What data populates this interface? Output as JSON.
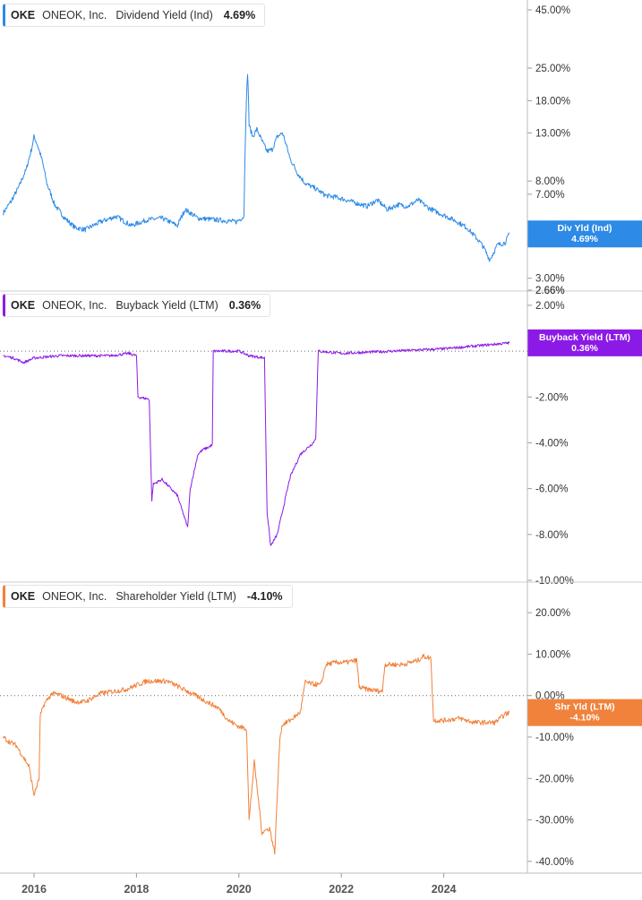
{
  "colors": {
    "dividend": "#2d8ae6",
    "buyback": "#8c1ae6",
    "shareholder": "#f0823c",
    "axis_text": "#333333",
    "divider": "#cccccc"
  },
  "chart_data": [
    {
      "type": "line",
      "ticker": "OKE",
      "company": "ONEOK, Inc.",
      "title": "Dividend Yield (Ind)",
      "value": "4.69%",
      "tag": [
        "Div Yld (Ind)",
        "4.69%"
      ],
      "scale": "log",
      "ylim": [
        2.66,
        45
      ],
      "yticks": [
        "45.00%",
        "25.00%",
        "18.00%",
        "13.00%",
        "8.00%",
        "7.00%",
        "3.00%",
        "2.66%"
      ],
      "ytick_values": [
        45,
        25,
        18,
        13,
        8,
        7,
        3,
        2.66
      ],
      "series": [
        {
          "x": [
            2015.4,
            2015.55,
            2015.7,
            2015.85,
            2015.95,
            2016.0,
            2016.05,
            2016.15,
            2016.25,
            2016.4,
            2016.6,
            2016.8,
            2017.0,
            2017.3,
            2017.6,
            2017.9,
            2018.2,
            2018.5,
            2018.8,
            2018.95,
            2019.2,
            2019.6,
            2019.95,
            2020.1,
            2020.17,
            2020.2,
            2020.27,
            2020.35,
            2020.45,
            2020.55,
            2020.65,
            2020.75,
            2020.85,
            2020.95,
            2021.0,
            2021.15,
            2021.3,
            2021.5,
            2021.7,
            2021.9,
            2022.1,
            2022.3,
            2022.5,
            2022.7,
            2022.9,
            2023.1,
            2023.3,
            2023.5,
            2023.7,
            2023.9,
            2024.2,
            2024.45,
            2024.6,
            2024.75,
            2024.9,
            2025.05,
            2025.2,
            2025.28
          ],
          "y": [
            5.8,
            6.5,
            7.5,
            9.0,
            11.0,
            12.5,
            11.8,
            10.0,
            7.8,
            6.3,
            5.5,
            5.0,
            4.9,
            5.3,
            5.6,
            5.1,
            5.4,
            5.5,
            5.1,
            6.0,
            5.5,
            5.4,
            5.3,
            5.6,
            24.0,
            14.0,
            12.5,
            13.5,
            12.0,
            10.8,
            11.0,
            12.5,
            13.0,
            11.0,
            10.0,
            8.6,
            7.8,
            7.4,
            6.9,
            6.8,
            6.6,
            6.4,
            6.2,
            6.6,
            6.0,
            6.3,
            6.2,
            6.6,
            6.1,
            5.8,
            5.4,
            5.0,
            4.6,
            4.2,
            3.6,
            4.2,
            4.3,
            4.69
          ]
        }
      ]
    },
    {
      "type": "line",
      "ticker": "OKE",
      "company": "ONEOK, Inc.",
      "title": "Buyback Yield (LTM)",
      "value": "0.36%",
      "tag": [
        "Buyback Yield (LTM)",
        "0.36%"
      ],
      "scale": "linear",
      "ylim": [
        -10,
        2.66
      ],
      "yticks": [
        "2.66%",
        "2.00%",
        "-2.00%",
        "-4.00%",
        "-6.00%",
        "-8.00%",
        "-10.00%"
      ],
      "ytick_values": [
        2.66,
        2.0,
        -2.0,
        -4.0,
        -6.0,
        -8.0,
        -10.0
      ],
      "series": [
        {
          "x": [
            2015.4,
            2015.6,
            2015.8,
            2016.0,
            2016.5,
            2017.0,
            2017.5,
            2017.85,
            2018.0,
            2018.03,
            2018.25,
            2018.3,
            2018.33,
            2018.5,
            2018.8,
            2019.0,
            2019.05,
            2019.2,
            2019.3,
            2019.4,
            2019.48,
            2019.5,
            2020.0,
            2020.2,
            2020.5,
            2020.55,
            2020.62,
            2020.75,
            2021.0,
            2021.2,
            2021.45,
            2021.5,
            2021.55,
            2022.0,
            2022.5,
            2023.0,
            2023.5,
            2024.0,
            2024.5,
            2025.0,
            2025.28
          ],
          "y": [
            -0.2,
            -0.3,
            -0.5,
            -0.3,
            -0.2,
            -0.2,
            -0.2,
            -0.1,
            -0.2,
            -2.0,
            -2.1,
            -6.5,
            -5.8,
            -5.6,
            -6.3,
            -7.7,
            -6.0,
            -4.5,
            -4.3,
            -4.2,
            -4.1,
            0.0,
            0.0,
            -0.2,
            -0.3,
            -7.0,
            -8.5,
            -8.0,
            -5.5,
            -4.5,
            -4.0,
            -3.8,
            0.0,
            -0.1,
            -0.05,
            0.0,
            0.05,
            0.1,
            0.2,
            0.3,
            0.36
          ]
        }
      ]
    },
    {
      "type": "line",
      "ticker": "OKE",
      "company": "ONEOK, Inc.",
      "title": "Shareholder Yield (LTM)",
      "value": "-4.10%",
      "tag": [
        "Shr Yld (LTM)",
        "-4.10%"
      ],
      "scale": "linear",
      "ylim": [
        -45,
        25
      ],
      "yticks": [
        "20.00%",
        "10.00%",
        "0.00%",
        "-10.00%",
        "-20.00%",
        "-30.00%",
        "-40.00%"
      ],
      "ytick_values": [
        20,
        10,
        0,
        -10,
        -20,
        -30,
        -40
      ],
      "series": [
        {
          "x": [
            2015.4,
            2015.5,
            2015.65,
            2015.8,
            2015.9,
            2016.0,
            2016.1,
            2016.12,
            2016.2,
            2016.35,
            2016.5,
            2016.8,
            2017.0,
            2017.3,
            2017.8,
            2018.2,
            2018.6,
            2019.0,
            2019.3,
            2019.6,
            2019.8,
            2020.0,
            2020.15,
            2020.2,
            2020.3,
            2020.45,
            2020.6,
            2020.7,
            2020.8,
            2020.85,
            2021.0,
            2021.2,
            2021.3,
            2021.35,
            2021.6,
            2021.7,
            2021.9,
            2022.1,
            2022.3,
            2022.35,
            2022.5,
            2022.8,
            2022.85,
            2023.2,
            2023.5,
            2023.6,
            2023.75,
            2023.8,
            2024.0,
            2024.3,
            2024.6,
            2024.8,
            2025.0,
            2025.2,
            2025.28
          ],
          "y": [
            -10,
            -11,
            -12,
            -15,
            -17,
            -24,
            -20,
            -5,
            -2,
            0.5,
            0.2,
            -1.5,
            -1.5,
            0.5,
            1.5,
            3.5,
            3.5,
            1,
            -1,
            -3,
            -6,
            -7.5,
            -8,
            -30,
            -16,
            -33,
            -32,
            -38,
            -10,
            -7,
            -6,
            -4,
            3.5,
            3,
            2.5,
            7.5,
            8,
            8,
            8.5,
            2,
            1.5,
            1,
            7.5,
            7.5,
            8.5,
            9.5,
            9,
            -6,
            -6,
            -5.5,
            -6.5,
            -6.5,
            -6.5,
            -4.5,
            -4.1
          ]
        }
      ]
    }
  ],
  "x_axis": {
    "ticks": [
      "2016",
      "2018",
      "2020",
      "2022",
      "2024"
    ],
    "tick_values": [
      2016,
      2018,
      2020,
      2022,
      2024
    ]
  }
}
